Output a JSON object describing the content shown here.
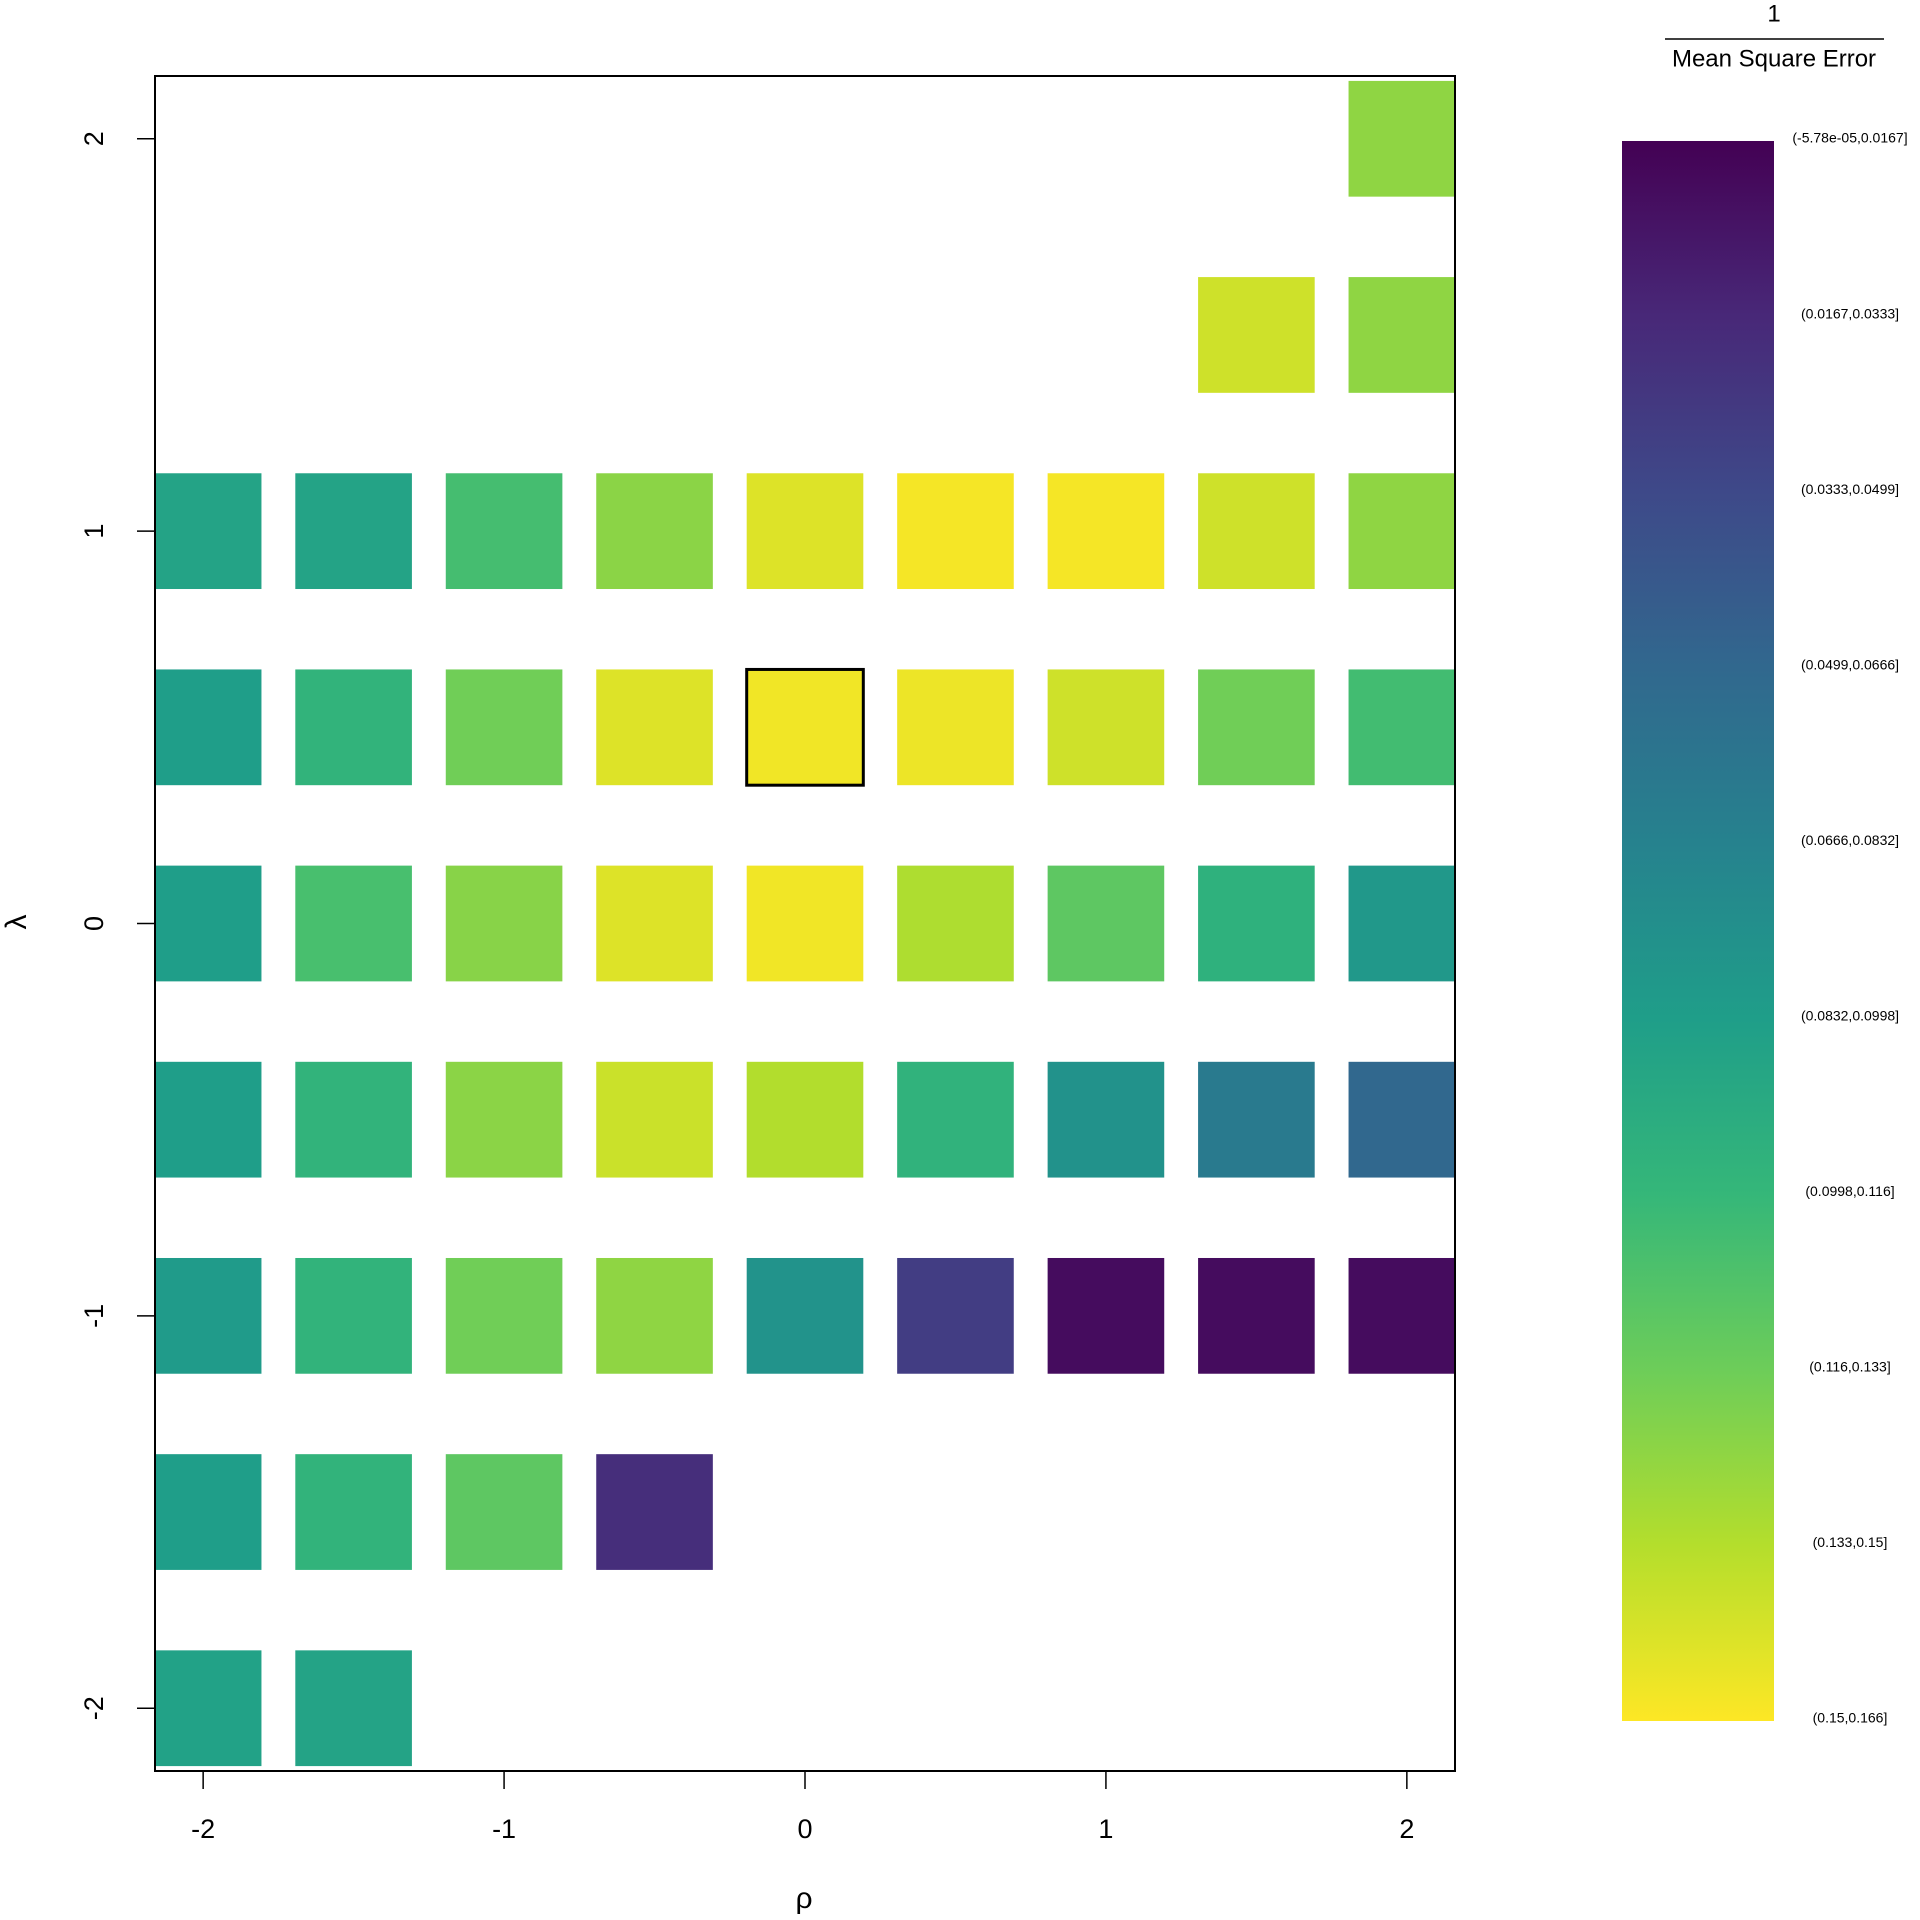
{
  "chart_data": {
    "type": "heatmap",
    "xlabel": "ρ",
    "ylabel": "λ",
    "xlim": [
      -2.16,
      2.16
    ],
    "ylim": [
      -2.16,
      2.16
    ],
    "xticks": [
      -2,
      -1,
      0,
      1,
      2
    ],
    "yticks": [
      -2,
      -1,
      0,
      1,
      2
    ],
    "x": [
      2,
      1.5,
      2,
      -2,
      -1.5,
      -1,
      -0.5,
      0,
      0.5,
      1,
      1.5,
      2,
      -2,
      -1.5,
      -1,
      -0.5,
      0,
      0.5,
      1,
      1.5,
      2,
      -2,
      -1.5,
      -1,
      -0.5,
      0,
      0.5,
      1,
      1.5,
      2,
      -2,
      -1.5,
      -1,
      -0.5,
      0,
      0.5,
      1,
      1.5,
      2,
      -2,
      -1.5,
      -1,
      -0.5,
      0,
      0.5,
      1,
      1.5,
      2,
      -2,
      -1.5,
      -1,
      -0.5,
      -2,
      -1.5
    ],
    "y": [
      2,
      1.5,
      1.5,
      1,
      1,
      1,
      1,
      1,
      1,
      1,
      1,
      1,
      0.5,
      0.5,
      0.5,
      0.5,
      0.5,
      0.5,
      0.5,
      0.5,
      0.5,
      0,
      0,
      0,
      0,
      0,
      0,
      0,
      0,
      0,
      -0.5,
      -0.5,
      -0.5,
      -0.5,
      -0.5,
      -0.5,
      -0.5,
      -0.5,
      -0.5,
      -1,
      -1,
      -1,
      -1,
      -1,
      -1,
      -1,
      -1,
      -1,
      -1.5,
      -1.5,
      -1.5,
      -1.5,
      -2,
      -2
    ],
    "values": [
      0.138,
      0.154,
      0.138,
      0.096,
      0.096,
      0.116,
      0.137,
      0.158,
      0.164,
      0.164,
      0.154,
      0.138,
      0.092,
      0.108,
      0.13,
      0.158,
      0.163,
      0.162,
      0.154,
      0.13,
      0.115,
      0.092,
      0.117,
      0.136,
      0.158,
      0.163,
      0.146,
      0.124,
      0.106,
      0.088,
      0.092,
      0.108,
      0.137,
      0.153,
      0.147,
      0.107,
      0.084,
      0.068,
      0.055,
      0.09,
      0.108,
      0.13,
      0.138,
      0.085,
      0.03,
      0.005,
      0.005,
      0.005,
      0.092,
      0.108,
      0.124,
      0.022,
      0.095,
      0.096
    ],
    "highlight": {
      "x": 0,
      "y": 0.5
    },
    "zlim": [
      -5.78e-05,
      0.166
    ],
    "colorscale": [
      "#440154",
      "#482878",
      "#3E4989",
      "#31688E",
      "#26828E",
      "#1F9E89",
      "#35B779",
      "#6DCD59",
      "#B4DE2C",
      "#FDE725"
    ],
    "legend": {
      "title_numerator": "1",
      "title_denominator": "Mean Square Error",
      "bins": [
        "(-5.78e-05,0.0167]",
        "(0.0167,0.0333]",
        "(0.0333,0.0499]",
        "(0.0499,0.0666]",
        "(0.0666,0.0832]",
        "(0.0832,0.0998]",
        "(0.0998,0.116]",
        "(0.116,0.133]",
        "(0.133,0.15]",
        "(0.15,0.166]"
      ]
    }
  }
}
